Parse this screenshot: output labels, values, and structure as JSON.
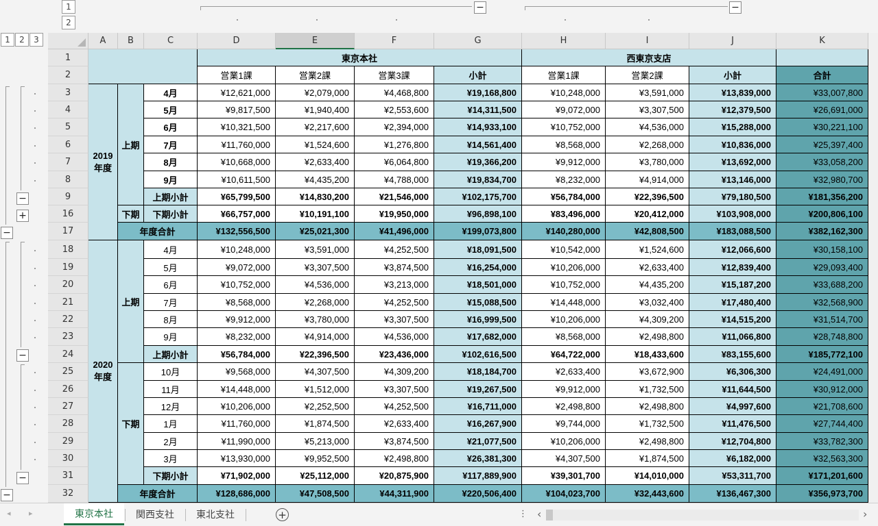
{
  "outline": {
    "col_levels": [
      "1",
      "2"
    ],
    "row_levels": [
      "1",
      "2",
      "3"
    ],
    "collapse_symbol": "−",
    "expand_symbol": "+"
  },
  "columns": [
    "A",
    "B",
    "C",
    "D",
    "E",
    "F",
    "G",
    "H",
    "I",
    "J",
    "K"
  ],
  "selected_column": "E",
  "rows": [
    "1",
    "2",
    "3",
    "4",
    "5",
    "6",
    "7",
    "8",
    "9",
    "16",
    "17",
    "18",
    "19",
    "20",
    "21",
    "22",
    "23",
    "24",
    "25",
    "26",
    "27",
    "28",
    "29",
    "30",
    "31",
    "32"
  ],
  "header": {
    "tokyo": "東京本社",
    "nishitokyo": "西東京支店",
    "sub": [
      "営業1課",
      "営業2課",
      "営業3課",
      "小計",
      "営業1課",
      "営業2課",
      "小計",
      "合計"
    ]
  },
  "groups": {
    "y2019": "2019\n年度",
    "y2020": "2020\n年度",
    "first_half": "上期",
    "second_half": "下期"
  },
  "table": [
    {
      "label": "4月",
      "vals": [
        "¥12,621,000",
        "¥2,079,000",
        "¥4,468,800",
        "¥19,168,800",
        "¥10,248,000",
        "¥3,591,000",
        "¥13,839,000",
        "¥33,007,800"
      ]
    },
    {
      "label": "5月",
      "vals": [
        "¥9,817,500",
        "¥1,940,400",
        "¥2,553,600",
        "¥14,311,500",
        "¥9,072,000",
        "¥3,307,500",
        "¥12,379,500",
        "¥26,691,000"
      ]
    },
    {
      "label": "6月",
      "vals": [
        "¥10,321,500",
        "¥2,217,600",
        "¥2,394,000",
        "¥14,933,100",
        "¥10,752,000",
        "¥4,536,000",
        "¥15,288,000",
        "¥30,221,100"
      ]
    },
    {
      "label": "7月",
      "vals": [
        "¥11,760,000",
        "¥1,524,600",
        "¥1,276,800",
        "¥14,561,400",
        "¥8,568,000",
        "¥2,268,000",
        "¥10,836,000",
        "¥25,397,400"
      ]
    },
    {
      "label": "8月",
      "vals": [
        "¥10,668,000",
        "¥2,633,400",
        "¥6,064,800",
        "¥19,366,200",
        "¥9,912,000",
        "¥3,780,000",
        "¥13,692,000",
        "¥33,058,200"
      ]
    },
    {
      "label": "9月",
      "vals": [
        "¥10,611,500",
        "¥4,435,200",
        "¥4,788,000",
        "¥19,834,700",
        "¥8,232,000",
        "¥4,914,000",
        "¥13,146,000",
        "¥32,980,700"
      ]
    },
    {
      "label": "上期小計",
      "vals": [
        "¥65,799,500",
        "¥14,830,200",
        "¥21,546,000",
        "¥102,175,700",
        "¥56,784,000",
        "¥22,396,500",
        "¥79,180,500",
        "¥181,356,200"
      ]
    },
    {
      "label": "下期小計",
      "vals": [
        "¥66,757,000",
        "¥10,191,100",
        "¥19,950,000",
        "¥96,898,100",
        "¥83,496,000",
        "¥20,412,000",
        "¥103,908,000",
        "¥200,806,100"
      ]
    },
    {
      "label": "年度合計",
      "vals": [
        "¥132,556,500",
        "¥25,021,300",
        "¥41,496,000",
        "¥199,073,800",
        "¥140,280,000",
        "¥42,808,500",
        "¥183,088,500",
        "¥382,162,300"
      ]
    },
    {
      "label": "4月",
      "vals": [
        "¥10,248,000",
        "¥3,591,000",
        "¥4,252,500",
        "¥18,091,500",
        "¥10,542,000",
        "¥1,524,600",
        "¥12,066,600",
        "¥30,158,100"
      ]
    },
    {
      "label": "5月",
      "vals": [
        "¥9,072,000",
        "¥3,307,500",
        "¥3,874,500",
        "¥16,254,000",
        "¥10,206,000",
        "¥2,633,400",
        "¥12,839,400",
        "¥29,093,400"
      ]
    },
    {
      "label": "6月",
      "vals": [
        "¥10,752,000",
        "¥4,536,000",
        "¥3,213,000",
        "¥18,501,000",
        "¥10,752,000",
        "¥4,435,200",
        "¥15,187,200",
        "¥33,688,200"
      ]
    },
    {
      "label": "7月",
      "vals": [
        "¥8,568,000",
        "¥2,268,000",
        "¥4,252,500",
        "¥15,088,500",
        "¥14,448,000",
        "¥3,032,400",
        "¥17,480,400",
        "¥32,568,900"
      ]
    },
    {
      "label": "8月",
      "vals": [
        "¥9,912,000",
        "¥3,780,000",
        "¥3,307,500",
        "¥16,999,500",
        "¥10,206,000",
        "¥4,309,200",
        "¥14,515,200",
        "¥31,514,700"
      ]
    },
    {
      "label": "9月",
      "vals": [
        "¥8,232,000",
        "¥4,914,000",
        "¥4,536,000",
        "¥17,682,000",
        "¥8,568,000",
        "¥2,498,800",
        "¥11,066,800",
        "¥28,748,800"
      ]
    },
    {
      "label": "上期小計",
      "vals": [
        "¥56,784,000",
        "¥22,396,500",
        "¥23,436,000",
        "¥102,616,500",
        "¥64,722,000",
        "¥18,433,600",
        "¥83,155,600",
        "¥185,772,100"
      ]
    },
    {
      "label": "10月",
      "vals": [
        "¥9,568,000",
        "¥4,307,500",
        "¥4,309,200",
        "¥18,184,700",
        "¥2,633,400",
        "¥3,672,900",
        "¥6,306,300",
        "¥24,491,000"
      ]
    },
    {
      "label": "11月",
      "vals": [
        "¥14,448,000",
        "¥1,512,000",
        "¥3,307,500",
        "¥19,267,500",
        "¥9,912,000",
        "¥1,732,500",
        "¥11,644,500",
        "¥30,912,000"
      ]
    },
    {
      "label": "12月",
      "vals": [
        "¥10,206,000",
        "¥2,252,500",
        "¥4,252,500",
        "¥16,711,000",
        "¥2,498,800",
        "¥2,498,800",
        "¥4,997,600",
        "¥21,708,600"
      ]
    },
    {
      "label": "1月",
      "vals": [
        "¥11,760,000",
        "¥1,874,500",
        "¥2,633,400",
        "¥16,267,900",
        "¥9,744,000",
        "¥1,732,500",
        "¥11,476,500",
        "¥27,744,400"
      ]
    },
    {
      "label": "2月",
      "vals": [
        "¥11,990,000",
        "¥5,213,000",
        "¥3,874,500",
        "¥21,077,500",
        "¥10,206,000",
        "¥2,498,800",
        "¥12,704,800",
        "¥33,782,300"
      ]
    },
    {
      "label": "3月",
      "vals": [
        "¥13,930,000",
        "¥9,952,500",
        "¥2,498,800",
        "¥26,381,300",
        "¥4,307,500",
        "¥1,874,500",
        "¥6,182,000",
        "¥32,563,300"
      ]
    },
    {
      "label": "下期小計",
      "vals": [
        "¥71,902,000",
        "¥25,112,000",
        "¥20,875,900",
        "¥117,889,900",
        "¥39,301,700",
        "¥14,010,000",
        "¥53,311,700",
        "¥171,201,600"
      ]
    },
    {
      "label": "年度合計",
      "vals": [
        "¥128,686,000",
        "¥47,508,500",
        "¥44,311,900",
        "¥220,506,400",
        "¥104,023,700",
        "¥32,443,600",
        "¥136,467,300",
        "¥356,973,700"
      ]
    }
  ],
  "sheets": [
    "東京本社",
    "関西支社",
    "東北支社"
  ],
  "active_sheet": 0,
  "icons": {
    "prev": "◂",
    "next": "▸",
    "add": "+",
    "more": "⋮",
    "scroll_left": "‹",
    "scroll_right": "›"
  },
  "colors": {
    "light": "#c6e3ea",
    "medium": "#7cbcc7",
    "dark": "#5fa4ac",
    "accent": "#217346"
  }
}
